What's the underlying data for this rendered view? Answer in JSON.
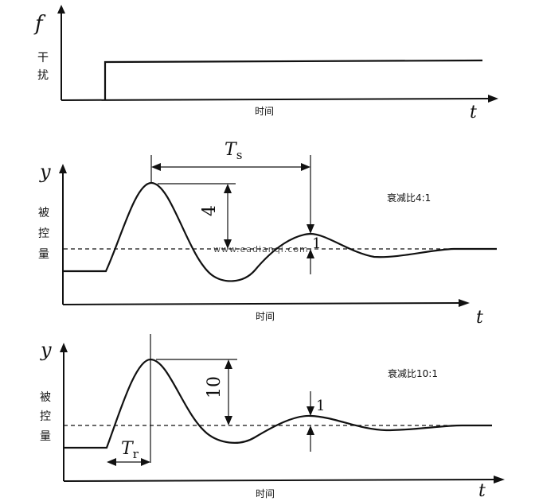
{
  "panel_top": {
    "y_axis_symbol": "f",
    "y_axis_label_chars": [
      "干",
      "扰"
    ],
    "x_axis_label": "时间",
    "x_axis_symbol": "t"
  },
  "panel_middle": {
    "y_axis_symbol": "y",
    "y_axis_label_chars": [
      "被",
      "控",
      "量"
    ],
    "x_axis_label": "时间",
    "x_axis_symbol": "t",
    "ratio_label": "衰减比4:1",
    "period_label_main": "T",
    "period_label_sub": "s",
    "peak_amplitude_label": "4",
    "second_peak_label": "1",
    "watermark": "www.eadianqi.com"
  },
  "panel_bottom": {
    "y_axis_symbol": "y",
    "y_axis_label_chars": [
      "被",
      "控",
      "量"
    ],
    "x_axis_label": "时间",
    "x_axis_symbol": "t",
    "ratio_label": "衰减比10:1",
    "rise_label_main": "T",
    "rise_label_sub": "r",
    "peak_amplitude_label": "10",
    "second_peak_label": "1"
  }
}
